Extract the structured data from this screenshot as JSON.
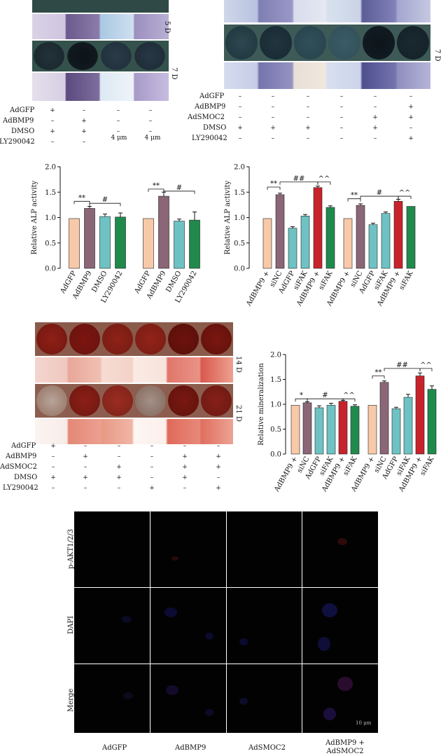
{
  "panel_a": {
    "time_labels": [
      "5 D",
      "7 D"
    ],
    "rows": [
      {
        "name": "AdGFP",
        "signs": [
          "+",
          "–",
          "–",
          "–"
        ]
      },
      {
        "name": "AdBMP9",
        "signs": [
          "–",
          "+",
          "–",
          "–"
        ]
      },
      {
        "name": "DMSO",
        "signs": [
          "+",
          "+",
          "–",
          "–"
        ]
      },
      {
        "name": "LY290042",
        "signs": [
          "–",
          "–",
          "4 μm",
          "4 μm"
        ]
      }
    ]
  },
  "panel_b": {
    "time_labels": [
      "7 D"
    ],
    "rows": [
      {
        "name": "AdGFP",
        "signs": [
          "–",
          "–",
          "–",
          "–",
          "–",
          "–"
        ]
      },
      {
        "name": "AdBMP9",
        "signs": [
          "–",
          "–",
          "–",
          "–",
          "–",
          "+"
        ]
      },
      {
        "name": "AdSMOC2",
        "signs": [
          "–",
          "–",
          "–",
          "–",
          "+",
          "+"
        ]
      },
      {
        "name": "DMSO",
        "signs": [
          "+",
          "+",
          "+",
          "–",
          "+",
          "–"
        ]
      },
      {
        "name": "LY290042",
        "signs": [
          "–",
          "–",
          "–",
          "–",
          "–",
          "+"
        ]
      }
    ]
  },
  "panel_e": {
    "time_labels": [
      "14 D",
      "21 D"
    ],
    "rows": [
      {
        "name": "AdGFP",
        "signs": [
          "+",
          "–",
          "–",
          "–",
          "–",
          "–"
        ]
      },
      {
        "name": "AdBMP9",
        "signs": [
          "–",
          "+",
          "–",
          "–",
          "+",
          "+"
        ]
      },
      {
        "name": "AdSMOC2",
        "signs": [
          "–",
          "–",
          "+",
          "–",
          "+",
          "+"
        ]
      },
      {
        "name": "DMSO",
        "signs": [
          "+",
          "+",
          "+",
          "–",
          "+",
          "–"
        ]
      },
      {
        "name": "LY290042",
        "signs": [
          "–",
          "–",
          "–",
          "+",
          "–",
          "+"
        ]
      }
    ]
  },
  "panel_g": {
    "row_labels": [
      "p-AKT1/2/3",
      "DAPI",
      "Merge"
    ],
    "col_labels": [
      "AdGFP",
      "AdBMP9",
      "AdSMOC2",
      "AdBMP9 + AdSMOC2"
    ],
    "scale_bar": "10 μm"
  },
  "colors": {
    "peach": "#f8c9a8",
    "mauve": "#8a6676",
    "teal": "#6ec2c3",
    "green": "#1f8a4c",
    "red": "#c8232b"
  },
  "chart_data": [
    {
      "type": "bar",
      "ylabel": "Relative ALP activity",
      "ylim": [
        0,
        2.0
      ],
      "yticks": [
        "0.0",
        "0.5",
        "1.0",
        "1.5",
        "2.0"
      ],
      "categories": [
        "AdGFP",
        "AdBMP9",
        "DMSO",
        "LY290042",
        "AdGFP",
        "AdBMP9",
        "DMSO",
        "LY290042"
      ],
      "values": [
        0.98,
        1.18,
        1.02,
        1.01,
        0.98,
        1.42,
        0.93,
        0.95
      ],
      "errors": [
        0.0,
        0.04,
        0.05,
        0.08,
        0.0,
        0.08,
        0.04,
        0.16
      ],
      "colors": [
        "#f8c9a8",
        "#8a6676",
        "#6ec2c3",
        "#1f8a4c",
        "#f8c9a8",
        "#8a6676",
        "#6ec2c3",
        "#1f8a4c"
      ],
      "annotations": [
        "**",
        "#",
        "**",
        "#"
      ]
    },
    {
      "type": "bar",
      "ylabel": "Relative ALP activity",
      "ylim": [
        0,
        2.0
      ],
      "yticks": [
        "0.0",
        "0.5",
        "1.0",
        "1.5",
        "2.0"
      ],
      "categories": [
        "AdBMP9 +",
        "siNC",
        "AdGFP",
        "siFAK",
        "AdBMP9 +",
        "siFAK",
        "AdBMP9 +",
        "siNC",
        "AdGFP",
        "siFAK",
        "AdBMP9 +",
        "siFAK"
      ],
      "values": [
        0.98,
        1.45,
        0.79,
        1.03,
        1.59,
        1.2,
        0.98,
        1.24,
        0.86,
        1.08,
        1.32,
        1.22
      ],
      "errors": [
        0.0,
        0.03,
        0.03,
        0.03,
        0.03,
        0.03,
        0.0,
        0.03,
        0.03,
        0.03,
        0.04,
        0.0
      ],
      "colors": [
        "#f8c9a8",
        "#8a6676",
        "#6ec2c3",
        "#6ec2c3",
        "#c8232b",
        "#1f8a4c",
        "#f8c9a8",
        "#8a6676",
        "#6ec2c3",
        "#6ec2c3",
        "#c8232b",
        "#1f8a4c"
      ],
      "annotations": [
        "**",
        "##",
        "^^",
        "**",
        "#",
        "^^"
      ]
    },
    {
      "type": "bar",
      "ylabel": "Relative mineralization",
      "ylim": [
        0,
        2.0
      ],
      "yticks": [
        "0.0",
        "0.5",
        "1.0",
        "1.5",
        "2.0"
      ],
      "categories": [
        "AdBMP9 +",
        "siNC",
        "AdGFP",
        "siFAK",
        "AdBMP9 +",
        "siFAK",
        "AdBMP9 +",
        "siNC",
        "AdGFP",
        "siFAK",
        "AdBMP9 +",
        "siFAK"
      ],
      "values": [
        0.98,
        1.03,
        0.93,
        0.98,
        1.06,
        0.96,
        0.98,
        1.44,
        0.91,
        1.14,
        1.57,
        1.3
      ],
      "errors": [
        0.0,
        0.02,
        0.04,
        0.04,
        0.02,
        0.03,
        0.0,
        0.03,
        0.03,
        0.06,
        0.06,
        0.07
      ],
      "colors": [
        "#f8c9a8",
        "#8a6676",
        "#6ec2c3",
        "#6ec2c3",
        "#c8232b",
        "#1f8a4c",
        "#f8c9a8",
        "#8a6676",
        "#6ec2c3",
        "#6ec2c3",
        "#c8232b",
        "#1f8a4c"
      ],
      "annotations": [
        "*",
        "#",
        "^^",
        "**",
        "##",
        "^^"
      ]
    }
  ]
}
